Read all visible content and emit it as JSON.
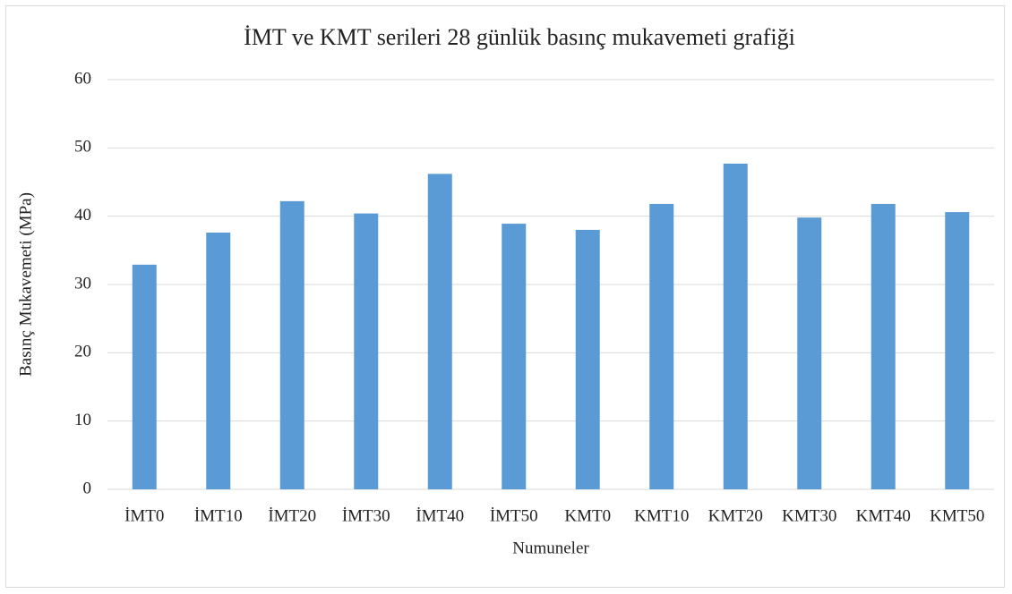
{
  "chart_data": {
    "type": "bar",
    "title": "İMT ve KMT serileri 28 günlük basınç mukavemeti grafiği",
    "x_label": "Numuneler",
    "y_label": "Basınç Mukavemeti (MPa)",
    "categories": [
      "İMT0",
      "İMT10",
      "İMT20",
      "İMT30",
      "İMT40",
      "İMT50",
      "KMT0",
      "KMT10",
      "KMT20",
      "KMT30",
      "KMT40",
      "KMT50"
    ],
    "values": [
      32.9,
      37.6,
      42.2,
      40.4,
      46.2,
      38.9,
      38.0,
      41.8,
      47.7,
      39.8,
      41.8,
      40.6
    ],
    "color": "#5b9bd5",
    "ylim": [
      0,
      60
    ],
    "yticks": [
      0,
      10,
      20,
      30,
      40,
      50,
      60
    ],
    "grid": true
  }
}
